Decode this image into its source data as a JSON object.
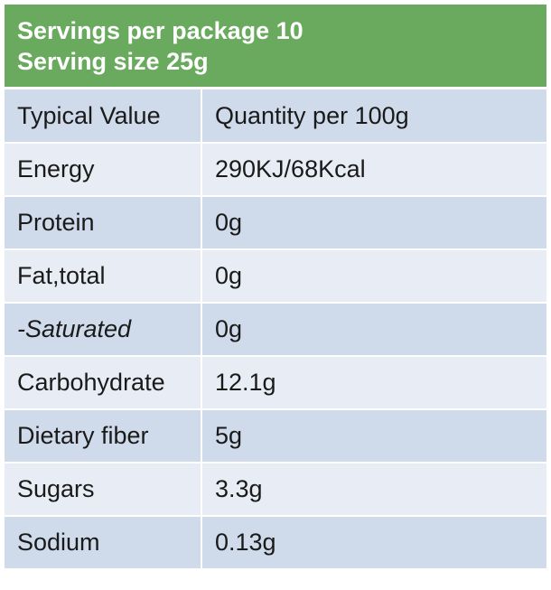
{
  "header": {
    "servings_line": "Servings per package 10",
    "size_line": "Serving size 25g"
  },
  "table": {
    "column_headers": [
      "Typical Value",
      "Quantity per 100g"
    ],
    "rows": [
      {
        "label": "Energy",
        "value": "290KJ/68Kcal"
      },
      {
        "label": "Protein",
        "value": "0g"
      },
      {
        "label": "Fat,total",
        "value": "0g"
      },
      {
        "label": "-Saturated",
        "value": "0g"
      },
      {
        "label": "Carbohydrate",
        "value": "12.1g"
      },
      {
        "label": "Dietary fiber",
        "value": "5g"
      },
      {
        "label": "Sugars",
        "value": "3.3g"
      },
      {
        "label": "Sodium",
        "value": "0.13g"
      }
    ]
  },
  "colors": {
    "header_bg": "#6aaa5e",
    "row_dark": "#cfdaea",
    "row_light": "#e8edf5"
  }
}
